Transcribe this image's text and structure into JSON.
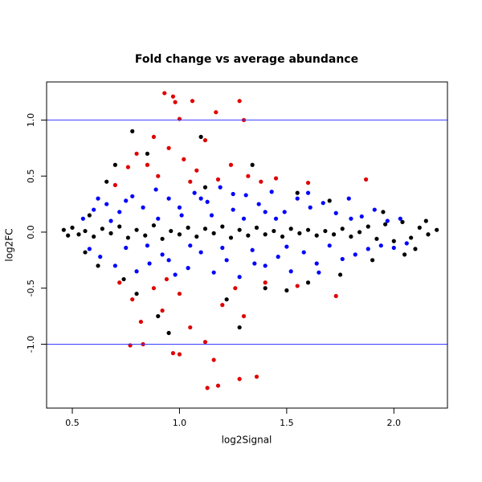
{
  "chart_data": {
    "type": "scatter",
    "title": "Fold change vs average abundance",
    "x_label": "log2Signal",
    "y_label": "log2FC",
    "xlim": [
      0.38,
      2.25
    ],
    "ylim": [
      -1.57,
      1.34
    ],
    "xticks": [
      {
        "value": 0.5,
        "label": "0.5"
      },
      {
        "value": 1,
        "label": "1.0"
      },
      {
        "value": 1.5,
        "label": "1.5"
      },
      {
        "value": 2,
        "label": "2.0"
      }
    ],
    "yticks": [
      {
        "value": -1,
        "label": "-1.0"
      },
      {
        "value": -0.5,
        "label": "-0.5"
      },
      {
        "value": 0,
        "label": "0.0"
      },
      {
        "value": 0.5,
        "label": "0.5"
      },
      {
        "value": 1,
        "label": "1.0"
      }
    ],
    "hlines": [
      1,
      -1
    ],
    "hline_color": "#3c3cff",
    "series": [
      {
        "color": "#000000",
        "x": [
          0.46,
          0.48,
          0.5,
          0.53,
          0.56,
          0.6,
          0.64,
          0.68,
          0.72,
          0.76,
          0.8,
          0.84,
          0.88,
          0.92,
          0.96,
          1.0,
          1.04,
          1.08,
          1.12,
          1.16,
          1.2,
          1.24,
          1.28,
          1.32,
          1.36,
          1.4,
          1.44,
          1.48,
          1.52,
          1.56,
          1.6,
          1.64,
          1.68,
          1.72,
          1.76,
          1.8,
          1.84,
          1.88,
          1.92,
          1.96,
          2.0,
          2.04,
          2.08,
          2.12,
          2.16,
          2.2,
          0.7,
          0.74,
          0.78,
          0.8,
          0.66,
          0.62,
          0.85,
          0.9,
          0.95,
          1.1,
          1.22,
          1.28,
          1.34,
          1.4,
          1.55,
          1.6,
          1.7,
          1.75,
          1.95,
          2.05,
          2.15,
          1.9,
          2.1,
          1.5,
          1.12,
          0.58,
          0.56
        ],
        "values": [
          0.02,
          -0.03,
          0.04,
          -0.02,
          0.01,
          -0.04,
          0.03,
          -0.01,
          0.05,
          -0.05,
          0.02,
          -0.03,
          0.06,
          -0.06,
          0.01,
          -0.02,
          0.04,
          -0.04,
          0.03,
          -0.01,
          0.05,
          -0.05,
          0.02,
          -0.03,
          0.04,
          -0.02,
          0.01,
          -0.04,
          0.03,
          -0.01,
          0.02,
          -0.03,
          0.01,
          -0.02,
          0.03,
          -0.04,
          0.0,
          0.05,
          -0.06,
          0.07,
          -0.08,
          0.09,
          -0.05,
          0.04,
          -0.02,
          0.02,
          0.6,
          -0.42,
          0.9,
          -0.55,
          0.45,
          -0.3,
          0.7,
          -0.75,
          -0.9,
          0.85,
          -0.6,
          -0.85,
          0.6,
          -0.5,
          0.35,
          -0.45,
          0.28,
          -0.38,
          0.18,
          -0.2,
          0.1,
          -0.25,
          -0.15,
          -0.52,
          0.4,
          0.15,
          -0.18
        ]
      },
      {
        "color": "#0000ff",
        "x": [
          0.55,
          0.58,
          0.6,
          0.63,
          0.66,
          0.7,
          0.72,
          0.75,
          0.78,
          0.8,
          0.83,
          0.86,
          0.89,
          0.92,
          0.95,
          0.98,
          1.01,
          1.04,
          1.07,
          1.1,
          1.13,
          1.16,
          1.19,
          1.22,
          1.25,
          1.28,
          1.31,
          1.34,
          1.37,
          1.4,
          1.43,
          1.46,
          1.49,
          1.52,
          1.55,
          1.58,
          1.61,
          1.64,
          1.67,
          1.7,
          1.73,
          1.76,
          1.79,
          1.82,
          1.85,
          1.88,
          1.91,
          1.94,
          1.97,
          2.0,
          2.03,
          2.06,
          0.68,
          0.9,
          1.0,
          1.05,
          1.15,
          1.2,
          1.3,
          1.35,
          1.45,
          1.5,
          0.85,
          0.95,
          1.25,
          1.1,
          0.75,
          1.6,
          1.65,
          1.4,
          0.62,
          1.8
        ],
        "values": [
          0.12,
          -0.15,
          0.2,
          -0.22,
          0.25,
          -0.3,
          0.18,
          -0.14,
          0.32,
          -0.35,
          0.22,
          -0.28,
          0.38,
          -0.2,
          0.3,
          -0.38,
          0.15,
          -0.32,
          0.35,
          -0.18,
          0.27,
          -0.36,
          0.4,
          -0.25,
          0.2,
          -0.4,
          0.33,
          -0.16,
          0.25,
          -0.3,
          0.36,
          -0.22,
          0.18,
          -0.35,
          0.3,
          -0.18,
          0.22,
          -0.28,
          0.26,
          -0.12,
          0.17,
          -0.24,
          0.3,
          -0.2,
          0.14,
          -0.15,
          0.2,
          -0.12,
          0.1,
          -0.14,
          0.12,
          -0.1,
          0.1,
          0.12,
          0.22,
          -0.12,
          0.15,
          -0.14,
          0.12,
          -0.28,
          0.12,
          -0.13,
          -0.12,
          -0.25,
          0.34,
          0.3,
          0.28,
          0.35,
          -0.36,
          0.18,
          0.3,
          0.12
        ]
      },
      {
        "color": "#e00000",
        "x": [
          0.93,
          0.97,
          0.98,
          1.06,
          1.17,
          1.28,
          1.3,
          1.0,
          0.88,
          0.8,
          0.76,
          0.85,
          0.9,
          0.95,
          1.02,
          1.08,
          1.12,
          1.18,
          1.24,
          1.32,
          1.38,
          1.45,
          1.6,
          1.87,
          0.7,
          1.05,
          0.72,
          0.78,
          0.82,
          0.88,
          0.92,
          0.97,
          1.0,
          0.77,
          0.83,
          1.05,
          1.12,
          1.16,
          1.13,
          1.18,
          1.28,
          1.36,
          1.2,
          1.26,
          1.3,
          1.4,
          1.55,
          1.73,
          1.0,
          0.94
        ],
        "values": [
          1.24,
          1.21,
          1.16,
          1.17,
          1.07,
          1.17,
          1.0,
          1.01,
          0.85,
          0.7,
          0.58,
          0.6,
          0.5,
          0.75,
          0.65,
          0.55,
          0.82,
          0.47,
          0.6,
          0.5,
          0.45,
          0.48,
          0.44,
          0.47,
          0.42,
          0.45,
          -0.45,
          -0.6,
          -0.8,
          -0.5,
          -0.7,
          -1.08,
          -1.09,
          -1.01,
          -1.0,
          -0.85,
          -0.98,
          -1.14,
          -1.39,
          -1.37,
          -1.31,
          -1.29,
          -0.65,
          -0.5,
          -0.75,
          -0.45,
          -0.48,
          -0.57,
          -0.55,
          -0.42
        ]
      }
    ]
  }
}
